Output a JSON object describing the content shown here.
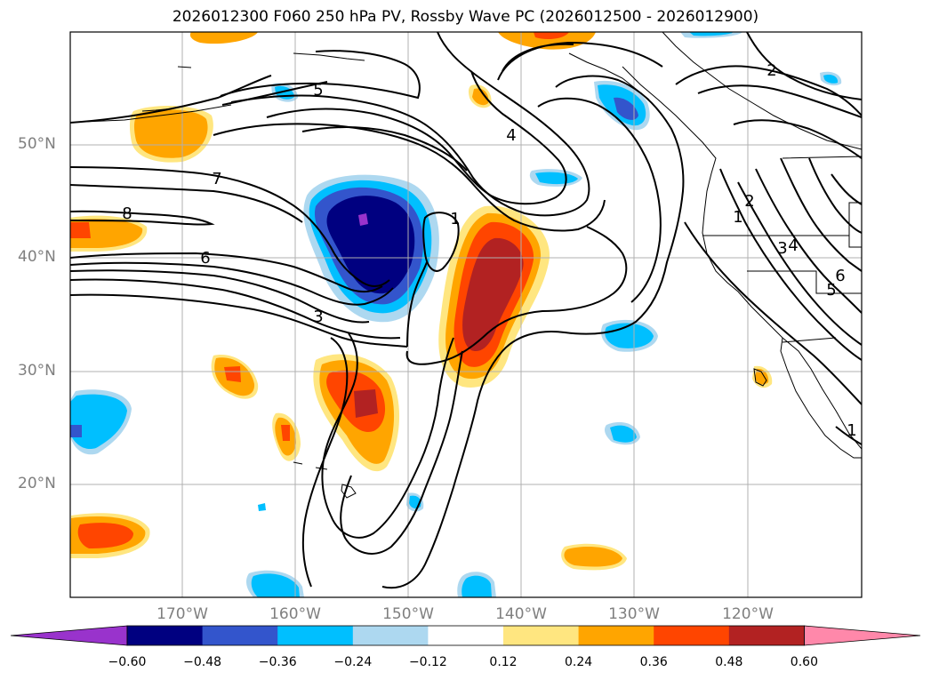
{
  "title": "2026012300 F060 250 hPa PV, Rossby Wave PC (2026012500 - 2026012900)",
  "lat_labels": [
    "50°N",
    "40°N",
    "30°N",
    "20°N"
  ],
  "lon_labels": [
    "170°W",
    "160°W",
    "150°W",
    "140°W",
    "130°W",
    "120°W"
  ],
  "contour_labels": [
    "5",
    "4",
    "7",
    "8",
    "6",
    "3",
    "1",
    "2",
    "1",
    "2",
    "3",
    "4",
    "5",
    "6",
    "1"
  ],
  "colorbar": {
    "ticks": [
      "−0.60",
      "−0.48",
      "−0.36",
      "−0.24",
      "−0.12",
      "0.12",
      "0.24",
      "0.36",
      "0.48",
      "0.60"
    ],
    "colors": [
      "#9933cc",
      "#000080",
      "#3355cc",
      "#00bfff",
      "#add8f0",
      "#ffffff",
      "#ffe680",
      "#ffa500",
      "#ff4500",
      "#b22222",
      "#ff88aa"
    ]
  }
}
